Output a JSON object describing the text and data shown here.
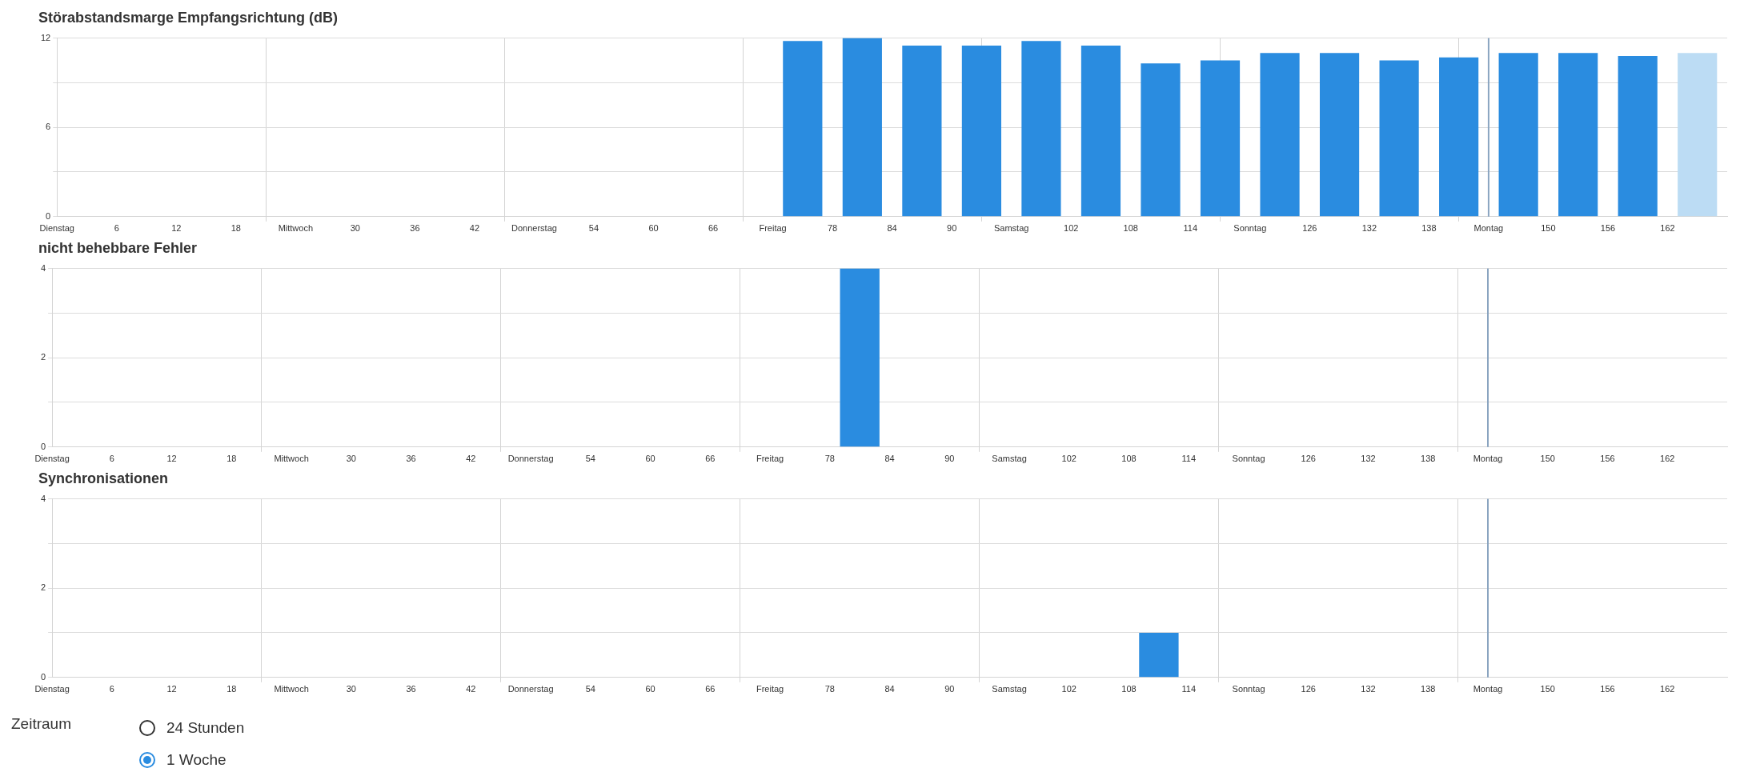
{
  "chart_data": [
    {
      "type": "bar",
      "title": "Störabstandsmarge Empfangsrichtung (dB)",
      "x": [
        75,
        81,
        87,
        93,
        99,
        105,
        111,
        117,
        123,
        129,
        135,
        141,
        147,
        153,
        159,
        165
      ],
      "series": [
        {
          "color": "#2a8ce0",
          "colors": [
            "#2a8ce0",
            "#2a8ce0",
            "#2a8ce0",
            "#2a8ce0",
            "#2a8ce0",
            "#2a8ce0",
            "#2a8ce0",
            "#2a8ce0",
            "#2a8ce0",
            "#2a8ce0",
            "#2a8ce0",
            "#2a8ce0",
            "#2a8ce0",
            "#2a8ce0",
            "#2a8ce0",
            "#bcdcf4"
          ],
          "values": [
            11.8,
            12,
            11.5,
            11.5,
            11.8,
            11.5,
            10.3,
            10.5,
            11,
            11,
            10.5,
            10.7,
            11,
            11,
            10.8,
            11
          ]
        }
      ],
      "xlim": [
        0,
        168
      ],
      "xticks": [
        {
          "value": 0,
          "label": "Dienstag"
        },
        6,
        12,
        18,
        {
          "value": 24,
          "label": "Mittwoch"
        },
        30,
        36,
        42,
        {
          "value": 48,
          "label": "Donnerstag"
        },
        54,
        60,
        66,
        {
          "value": 72,
          "label": "Freitag"
        },
        78,
        84,
        90,
        {
          "value": 96,
          "label": "Samstag"
        },
        102,
        108,
        114,
        {
          "value": 120,
          "label": "Sonntag"
        },
        126,
        132,
        138,
        {
          "value": 144,
          "label": "Montag"
        },
        150,
        156,
        162
      ],
      "ylim": [
        0,
        12
      ],
      "yticks": [
        0,
        {
          "value": 3,
          "label": null
        },
        6,
        {
          "value": 9,
          "label": null
        },
        12
      ],
      "grid": true,
      "legend": false,
      "ref_lines": [
        {
          "axis": "x",
          "value": 144,
          "label": null,
          "color": "#8aa4c0"
        }
      ]
    },
    {
      "type": "bar",
      "title": "nicht behebbare Fehler",
      "x": [
        75,
        81,
        87,
        93,
        99,
        105,
        111,
        117,
        123,
        129,
        135,
        141,
        147,
        153,
        159
      ],
      "series": [
        {
          "color": "#2a8ce0",
          "values": [
            0,
            4,
            0,
            0,
            0,
            0,
            0,
            0,
            0,
            0,
            0,
            0,
            0,
            0,
            0
          ]
        }
      ],
      "xlim": [
        0,
        168
      ],
      "xticks": [
        {
          "value": 0,
          "label": "Dienstag"
        },
        6,
        12,
        18,
        {
          "value": 24,
          "label": "Mittwoch"
        },
        30,
        36,
        42,
        {
          "value": 48,
          "label": "Donnerstag"
        },
        54,
        60,
        66,
        {
          "value": 72,
          "label": "Freitag"
        },
        78,
        84,
        90,
        {
          "value": 96,
          "label": "Samstag"
        },
        102,
        108,
        114,
        {
          "value": 120,
          "label": "Sonntag"
        },
        126,
        132,
        138,
        {
          "value": 144,
          "label": "Montag"
        },
        150,
        156,
        162
      ],
      "ylim": [
        0,
        4
      ],
      "yticks": [
        0,
        {
          "value": 1,
          "label": null
        },
        2,
        {
          "value": 3,
          "label": null
        },
        4
      ],
      "grid": true,
      "legend": false,
      "ref_lines": [
        {
          "axis": "x",
          "value": 144,
          "label": null,
          "color": "#8aa4c0"
        }
      ]
    },
    {
      "type": "bar",
      "title": "Synchronisationen",
      "x": [
        75,
        81,
        87,
        93,
        99,
        105,
        111,
        117,
        123,
        129,
        135,
        141,
        147,
        153,
        159
      ],
      "series": [
        {
          "color": "#2a8ce0",
          "values": [
            0,
            0,
            0,
            0,
            0,
            0,
            1,
            0,
            0,
            0,
            0,
            0,
            0,
            0,
            0
          ]
        }
      ],
      "xlim": [
        0,
        168
      ],
      "xticks": [
        {
          "value": 0,
          "label": "Dienstag"
        },
        6,
        12,
        18,
        {
          "value": 24,
          "label": "Mittwoch"
        },
        30,
        36,
        42,
        {
          "value": 48,
          "label": "Donnerstag"
        },
        54,
        60,
        66,
        {
          "value": 72,
          "label": "Freitag"
        },
        78,
        84,
        90,
        {
          "value": 96,
          "label": "Samstag"
        },
        102,
        108,
        114,
        {
          "value": 120,
          "label": "Sonntag"
        },
        126,
        132,
        138,
        {
          "value": 144,
          "label": "Montag"
        },
        150,
        156,
        162
      ],
      "ylim": [
        0,
        4
      ],
      "yticks": [
        0,
        {
          "value": 1,
          "label": null
        },
        2,
        {
          "value": 3,
          "label": null
        },
        4
      ],
      "grid": true,
      "legend": false,
      "ref_lines": [
        {
          "axis": "x",
          "value": 144,
          "label": null,
          "color": "#8aa4c0"
        }
      ]
    },
    {
      "type": "other",
      "title": "Zeitraum",
      "annotations": [
        "24 Stunden",
        "1 Woche"
      ]
    }
  ]
}
